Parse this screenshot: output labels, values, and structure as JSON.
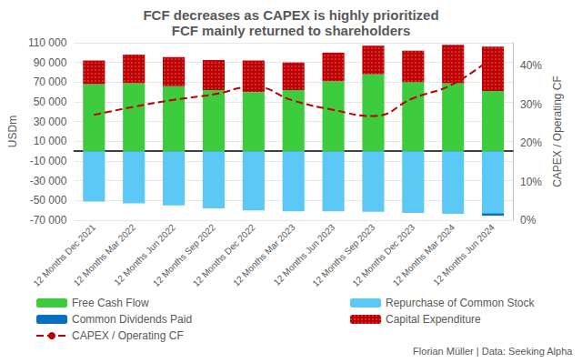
{
  "chart_data": {
    "type": "bar",
    "title": "FCF decreases as CAPEX is highly prioritized",
    "subtitle": "FCF mainly returned to shareholders",
    "y_label": "USDm",
    "y2_label": "CAPEX / Operating CF",
    "annotation": "Florian Müller | Data: Seeking Alpha",
    "categories": [
      "12 Months Dec 2021",
      "12 Months Mar 2022",
      "12 Months Jun 2022",
      "12 Months Sep 2022",
      "12 Months Dec 2022",
      "12 Months Mar 2023",
      "12 Months Jun 2023",
      "12 Months Sep 2023",
      "12 Months Dec 2023",
      "12 Months Mar 2024",
      "12 Months Jun 2024"
    ],
    "stacked": true,
    "grid": true,
    "legend": "bottom",
    "data_labels": false,
    "series": [
      {
        "name": "Free Cash Flow",
        "type": "bar",
        "color": "#3dcc3d",
        "values": [
          68000,
          69000,
          66000,
          62000,
          60000,
          62000,
          71000,
          78000,
          70000,
          69000,
          61000
        ]
      },
      {
        "name": "Repurchase of Common Stock",
        "type": "bar",
        "color": "#5bc8f5",
        "values": [
          -51000,
          -53000,
          -55000,
          -58000,
          -60000,
          -61000,
          -61000,
          -61500,
          -62500,
          -63500,
          -63000
        ]
      },
      {
        "name": "Common Dividends Paid",
        "type": "bar",
        "color": "#0a6fbf",
        "values": [
          0,
          0,
          0,
          0,
          0,
          0,
          0,
          0,
          0,
          0,
          -2500
        ]
      },
      {
        "name": "Capital Expenditure",
        "type": "bar",
        "color": "#c00000",
        "values": [
          24000,
          29000,
          29500,
          30500,
          32000,
          28000,
          29000,
          29000,
          32000,
          39000,
          45000
        ]
      },
      {
        "name": "CAPEX / Operating CF",
        "type": "line",
        "axis": "y2",
        "color": "#c00000",
        "line_style": "dashed",
        "values": [
          27.3,
          29.4,
          31.2,
          32.6,
          34.6,
          31.0,
          28.6,
          27.0,
          31.6,
          35.3,
          42.4
        ]
      }
    ],
    "ylim": [
      -70000,
      110000
    ],
    "yticks": [
      {
        "value": -70000,
        "label": "-70 000"
      },
      {
        "value": -50000,
        "label": "-50 000"
      },
      {
        "value": -30000,
        "label": "-30 000"
      },
      {
        "value": -10000,
        "label": "-10 000"
      },
      {
        "value": 10000,
        "label": "10 000"
      },
      {
        "value": 30000,
        "label": "30 000"
      },
      {
        "value": 50000,
        "label": "50 000"
      },
      {
        "value": 70000,
        "label": "70 000"
      },
      {
        "value": 90000,
        "label": "90 000"
      },
      {
        "value": 110000,
        "label": "110 000"
      }
    ],
    "y2lim": [
      0,
      46
    ],
    "y2ticks": [
      {
        "value": 0,
        "label": "0%"
      },
      {
        "value": 10,
        "label": "10%"
      },
      {
        "value": 20,
        "label": "20%"
      },
      {
        "value": 30,
        "label": "30%"
      },
      {
        "value": 40,
        "label": "40%"
      }
    ]
  }
}
